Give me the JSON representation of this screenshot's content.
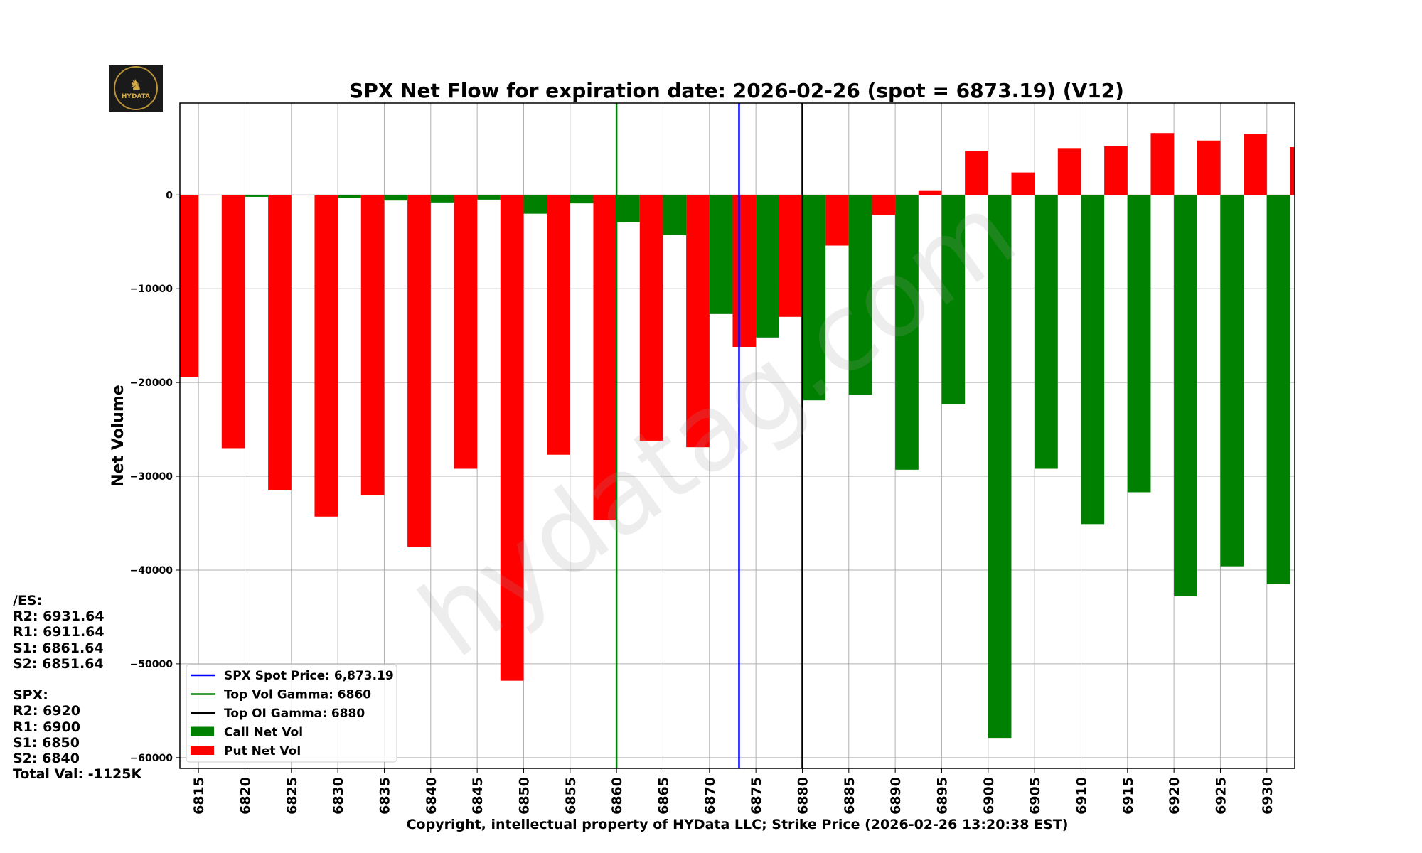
{
  "chart_data": {
    "type": "bar",
    "title": "SPX Net Flow for expiration date: 2026-02-26 (spot = 6873.19) (V12)",
    "xlabel": "Copyright, intellectual property of HYData LLC; Strike Price (2026-02-26 13:20:38 EST)",
    "ylabel": "Net Volume",
    "xlim": [
      6813,
      6933
    ],
    "ylim": [
      -61150,
      9800
    ],
    "yticks": [
      0,
      -10000,
      -20000,
      -30000,
      -40000,
      -50000,
      -60000
    ],
    "ytick_labels": [
      "0",
      "−10000",
      "−20000",
      "−30000",
      "−40000",
      "−50000",
      "−60000"
    ],
    "xticks": [
      6815,
      6820,
      6825,
      6830,
      6835,
      6840,
      6845,
      6850,
      6855,
      6860,
      6865,
      6870,
      6875,
      6880,
      6885,
      6890,
      6895,
      6900,
      6905,
      6910,
      6915,
      6920,
      6925,
      6930
    ],
    "grid": true,
    "legend_placement": "lower-left",
    "series": [
      {
        "name": "Call Net Vol",
        "color": "#008000",
        "offset": "right",
        "strikes": [
          6815,
          6820,
          6825,
          6830,
          6835,
          6840,
          6845,
          6850,
          6855,
          6860,
          6865,
          6870,
          6875,
          6880,
          6885,
          6890,
          6895,
          6900,
          6905,
          6910,
          6915,
          6920,
          6925,
          6930
        ],
        "values": [
          0,
          -200,
          0,
          -300,
          -600,
          -800,
          -500,
          -2000,
          -900,
          -2900,
          -4300,
          -12700,
          -15200,
          -21900,
          -21300,
          -29300,
          -22300,
          -57900,
          -29200,
          -35100,
          -31700,
          -42800,
          -39600,
          -41500
        ]
      },
      {
        "name": "Put Net Vol",
        "color": "#ff0000",
        "offset": "left",
        "strikes": [
          6815,
          6820,
          6825,
          6830,
          6835,
          6840,
          6845,
          6850,
          6855,
          6860,
          6865,
          6870,
          6875,
          6880,
          6885,
          6890,
          6895,
          6900,
          6905,
          6910,
          6915,
          6920,
          6925,
          6930,
          6935
        ],
        "values": [
          -19400,
          -27000,
          -31500,
          -34300,
          -32000,
          -37500,
          -29200,
          -51800,
          -27700,
          -34700,
          -26200,
          -26900,
          -16200,
          -13000,
          -5400,
          -2100,
          500,
          4700,
          2400,
          5000,
          5200,
          6600,
          5800,
          6500,
          5100
        ]
      }
    ],
    "vlines": [
      {
        "name": "SPX Spot Price: 6,873.19",
        "x": 6873.19,
        "color": "#0000ff"
      },
      {
        "name": "Top Vol Gamma: 6860",
        "x": 6860,
        "color": "#008000"
      },
      {
        "name": "Top OI Gamma: 6880",
        "x": 6880,
        "color": "#000000"
      }
    ],
    "legend": [
      "SPX Spot Price: 6,873.19",
      "Top Vol Gamma: 6860",
      "Top OI Gamma: 6880",
      "Call Net Vol",
      "Put Net Vol"
    ],
    "watermark": "hydatag.com"
  },
  "side_panel": {
    "lines": [
      "/ES:",
      "R2: 6931.64",
      "R1: 6911.64",
      "S1: 6861.64",
      "S2: 6851.64",
      "",
      "SPX:",
      "R2: 6920",
      "R1: 6900",
      "S1: 6850",
      "S2: 6840",
      "Total Val: -1125K"
    ]
  },
  "logo": {
    "text": "HYDATA"
  }
}
